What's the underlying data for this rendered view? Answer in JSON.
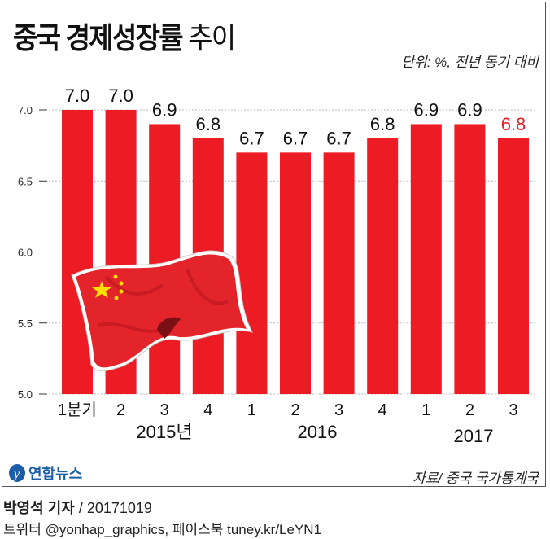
{
  "header": {
    "title_bold": "중국 경제성장률",
    "title_light": "추이",
    "unit": "단위: %, 전년 동기 대비"
  },
  "chart_data": {
    "type": "bar",
    "categories": [
      "1분기",
      "2",
      "3",
      "4",
      "1",
      "2",
      "3",
      "4",
      "1",
      "2",
      "3"
    ],
    "year_labels": [
      "2015년",
      "2016",
      "2017"
    ],
    "values": [
      7.0,
      7.0,
      6.9,
      6.8,
      6.7,
      6.7,
      6.7,
      6.8,
      6.9,
      6.9,
      6.8
    ],
    "value_labels": [
      "7.0",
      "7.0",
      "6.9",
      "6.8",
      "6.7",
      "6.7",
      "6.7",
      "6.8",
      "6.9",
      "6.9",
      "6.8"
    ],
    "yticks": [
      "5.0",
      "5.5",
      "6.0",
      "6.5",
      "7.0"
    ],
    "ylim": [
      5.0,
      7.0
    ],
    "grid": true,
    "bar_color": "#ed1c24",
    "highlight_label_color": "#ed1c24",
    "highlight_index": 10
  },
  "footer": {
    "logo": "연합뉴스",
    "source": "자료/ 중국 국가통계국",
    "reporter": "박영석 기자",
    "date": " / 20171019",
    "social": "트위터 @yonhap_graphics, 페이스북 tuney.kr/LeYN1"
  }
}
